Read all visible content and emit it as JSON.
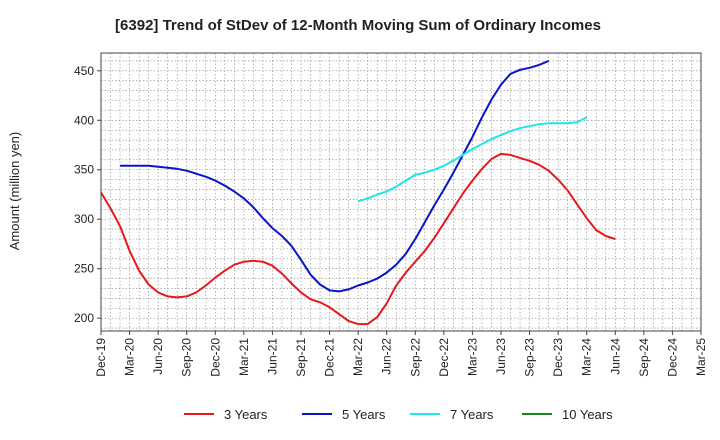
{
  "chart_data": {
    "type": "line",
    "title": "[6392]  Trend of StDev of 12-Month Moving Sum of Ordinary Incomes",
    "xlabel": "",
    "ylabel": "Amount (million yen)",
    "ylim": [
      187,
      468
    ],
    "yticks": [
      200,
      250,
      300,
      350,
      400,
      450
    ],
    "x_ticks": [
      "Dec-19",
      "Mar-20",
      "Jun-20",
      "Sep-20",
      "Dec-20",
      "Mar-21",
      "Jun-21",
      "Sep-21",
      "Dec-21",
      "Mar-22",
      "Jun-22",
      "Sep-22",
      "Dec-22",
      "Mar-23",
      "Jun-23",
      "Sep-23",
      "Dec-23",
      "Mar-24",
      "Jun-24",
      "Sep-24",
      "Dec-24",
      "Mar-25"
    ],
    "grid": true,
    "legend_position": "bottom",
    "series": [
      {
        "name": "3 Years",
        "color": "#e41a1c",
        "start_index": 0,
        "values": [
          327,
          311,
          293,
          268,
          248,
          234,
          226,
          222,
          221,
          222,
          226,
          233,
          241,
          248,
          254,
          257,
          258,
          257,
          253,
          245,
          235,
          226,
          219,
          216,
          211,
          204,
          197,
          194,
          194,
          201,
          215,
          233,
          246,
          257,
          268,
          281,
          296,
          311,
          326,
          339,
          351,
          361,
          366,
          365,
          362,
          359,
          355,
          349,
          340,
          329,
          315,
          301,
          289,
          283,
          280
        ]
      },
      {
        "name": "5 Years",
        "color": "#0a14c8",
        "start_index": 2,
        "values": [
          354,
          354,
          354,
          354,
          353,
          352,
          351,
          349,
          346,
          343,
          339,
          334,
          328,
          321,
          312,
          301,
          291,
          283,
          273,
          259,
          244,
          234,
          228,
          227,
          229,
          233,
          236,
          240,
          246,
          254,
          265,
          280,
          297,
          314,
          330,
          347,
          365,
          383,
          403,
          421,
          436,
          447,
          451,
          453,
          456,
          460
        ]
      },
      {
        "name": "7 Years",
        "color": "#1ee6e6",
        "start_index": 27,
        "values": [
          318,
          321,
          325,
          328,
          333,
          339,
          345,
          347,
          350,
          354,
          359,
          365,
          371,
          376,
          381,
          385,
          389,
          392,
          394,
          396,
          397,
          397,
          397,
          398,
          403
        ]
      },
      {
        "name": "10 Years",
        "color": "#1a8a1a",
        "start_index": 0,
        "values": []
      }
    ]
  }
}
